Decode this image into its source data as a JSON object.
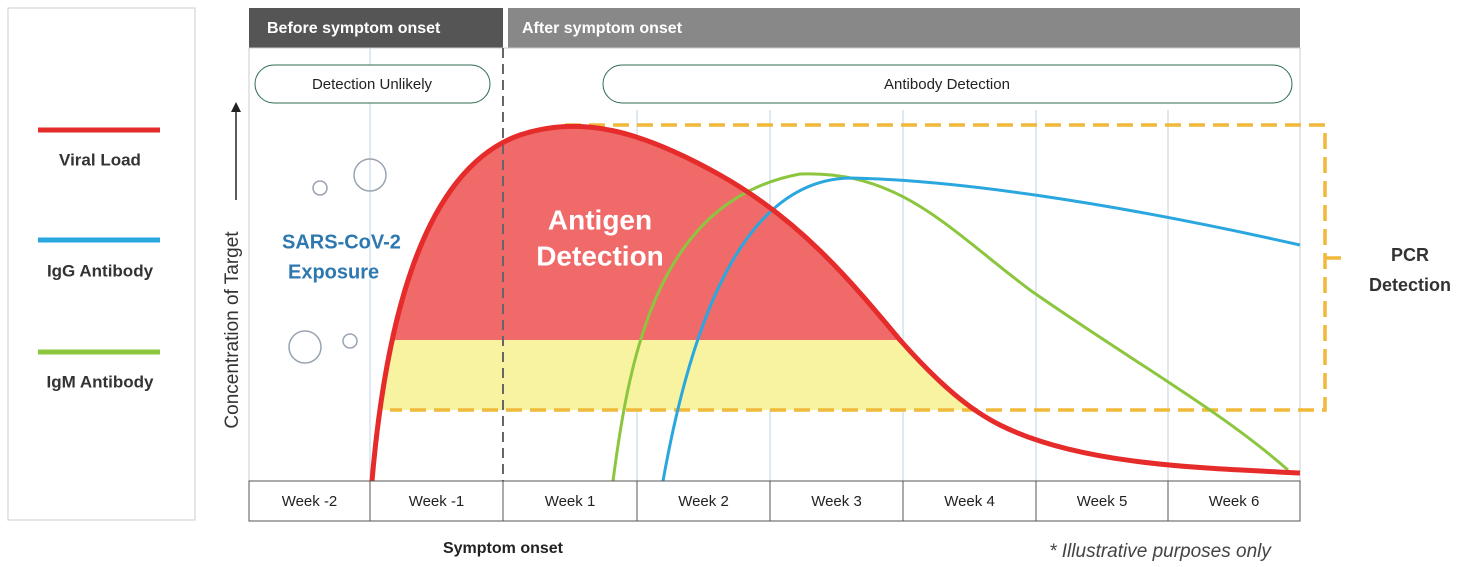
{
  "legend": {
    "items": [
      {
        "label": "Viral Load"
      },
      {
        "label": "IgG Antibody"
      },
      {
        "label": "IgM Antibody"
      }
    ]
  },
  "headers": {
    "before": "Before symptom onset",
    "after": "After symptom onset"
  },
  "phases": {
    "unlikely": "Detection Unlikely",
    "antibody": "Antibody Detection"
  },
  "y_axis_label": "Concentration of Target",
  "weeks": [
    "Week -2",
    "Week -1",
    "Week 1",
    "Week 2",
    "Week 3",
    "Week 4",
    "Week 5",
    "Week 6"
  ],
  "annotations": {
    "antigen": [
      "Antigen",
      "Detection"
    ],
    "exposure": [
      "SARS-CoV-2",
      "Exposure"
    ],
    "pcr": [
      "PCR",
      "Detection"
    ],
    "symptom_onset": "Symptom onset",
    "note": "* Illustrative purposes only"
  }
}
